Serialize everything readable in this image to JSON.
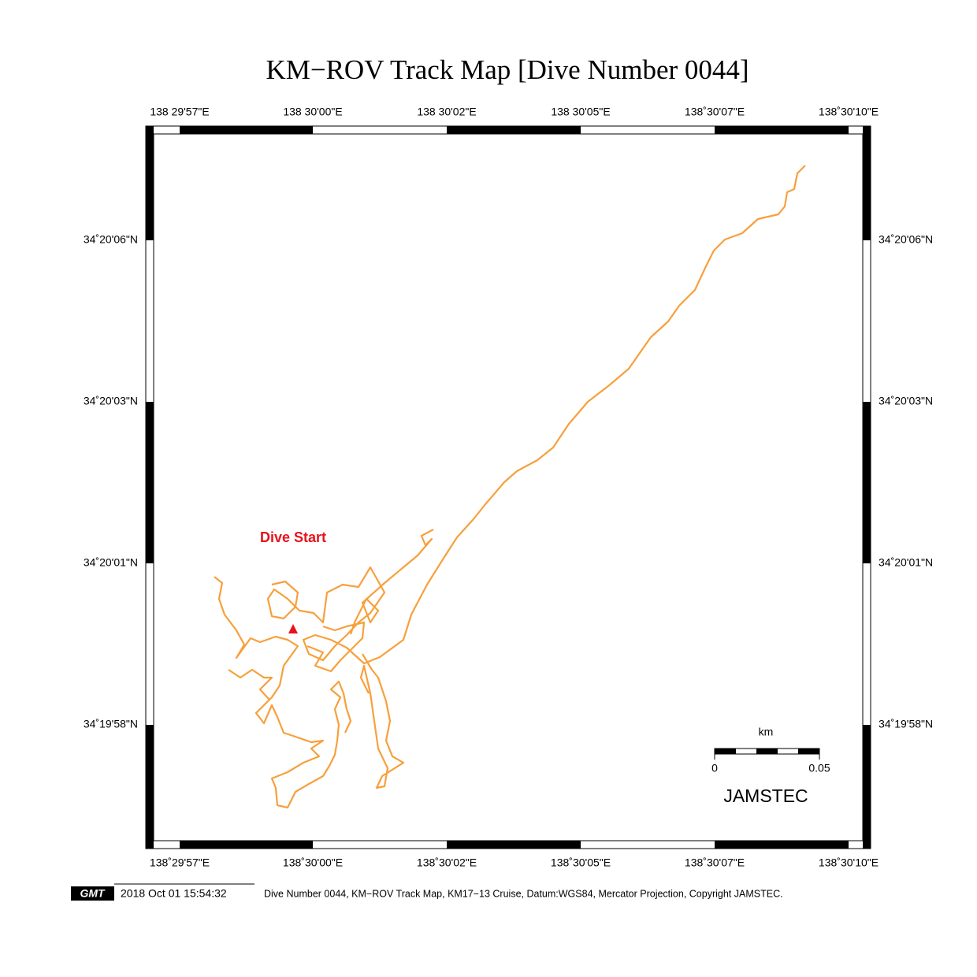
{
  "title": "KM−ROV Track Map [Dive Number 0044]",
  "top_ticks": [
    "138 29'57\"E",
    "138 30'00\"E",
    "138 30'02\"E",
    "138 30'05\"E",
    "138˚30'07\"E",
    "138˚30'10\"E"
  ],
  "bottom_ticks": [
    "138˚29'57\"E",
    "138˚30'00\"E",
    "138˚30'02\"E",
    "138˚30'05\"E",
    "138˚30'07\"E",
    "138˚30'10\"E"
  ],
  "left_ticks": [
    "34˚20'06\"N",
    "34˚20'03\"N",
    "34˚20'01\"N",
    "34˚19'58\"N"
  ],
  "right_ticks": [
    "34˚20'06\"N",
    "34˚20'03\"N",
    "34˚20'01\"N",
    "34˚19'58\"N"
  ],
  "annotation": "Dive Start",
  "scale_bar": {
    "unit": "km",
    "start": "0",
    "end": "0.05"
  },
  "credit": "JAMSTEC",
  "footer": {
    "logo": "GMT",
    "timestamp": "2018 Oct 01 15:54:32",
    "caption": "Dive Number 0044, KM−ROV Track Map, KM17−13 Cruise, Datum:WGS84, Mercator Projection, Copyright JAMSTEC."
  }
}
